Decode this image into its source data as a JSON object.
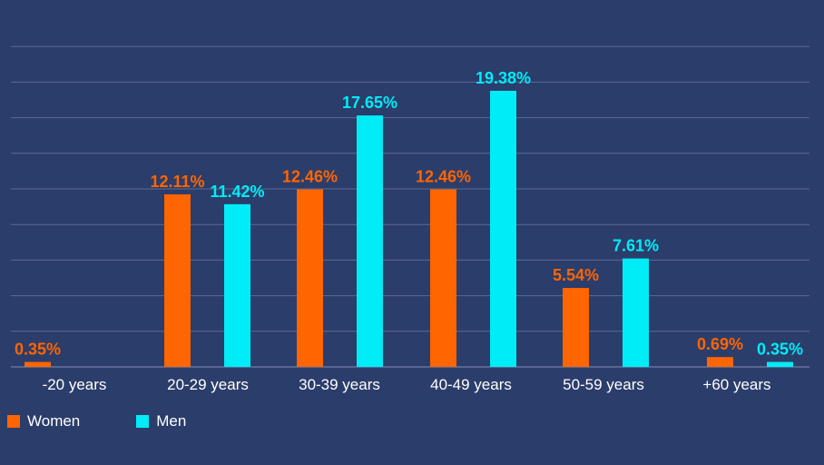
{
  "colors": {
    "background": "#2b3d6b",
    "grid": "#5b6b92",
    "women": "#ff6500",
    "men": "#00ecf6"
  },
  "legend": {
    "women_label": "Women",
    "men_label": "Men"
  },
  "chart_data": {
    "type": "bar",
    "title": "",
    "xlabel": "",
    "ylabel": "",
    "ylim": [
      0,
      22.5
    ],
    "grid": true,
    "legend_position": "bottom-left",
    "categories": [
      "-20 years",
      "20-29 years",
      "30-39 years",
      "40-49 years",
      "50-59 years",
      "+60 years"
    ],
    "series": [
      {
        "name": "Women",
        "color": "#ff6500",
        "values": [
          0.35,
          12.11,
          12.46,
          12.46,
          5.54,
          0.69
        ],
        "labels": [
          "0.35%",
          "12.11%",
          "12.46%",
          "12.46%",
          "5.54%",
          "0.69%"
        ]
      },
      {
        "name": "Men",
        "color": "#00ecf6",
        "values": [
          0,
          11.42,
          17.65,
          19.38,
          7.61,
          0.35
        ],
        "labels": [
          "",
          "11.42%",
          "17.65%",
          "19.38%",
          "7.61%",
          "0.35%"
        ]
      }
    ]
  }
}
